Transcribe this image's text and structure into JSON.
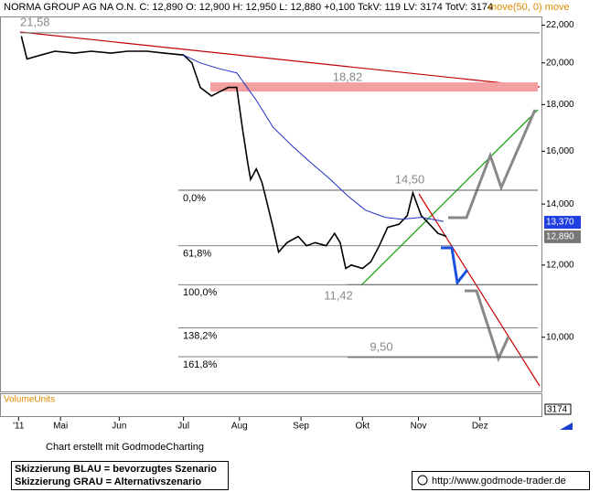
{
  "header": "NORMA GROUP AG NA    O.N. C: 12,890 O: 12,900 H: 12,950 L: 12,880 +0,100 TckV: 119 LV: 3174 TotV: 3174",
  "header_indicator": "move(50, 0) move",
  "footer": {
    "credit": "Chart erstellt mit GodmodeCharting",
    "legend_blue": "Skizzierung BLAU = bevorzugtes Szenario",
    "legend_gray": "Skizzierung GRAU = Alternativszenario",
    "url": "http://www.godmode-trader.de"
  },
  "chart_data": {
    "type": "line",
    "log_scale": true,
    "grid": false,
    "xlim": [
      0,
      192
    ],
    "ylim": [
      8.72,
      22.49
    ],
    "xticks": [
      {
        "value": 5,
        "label": "'11"
      },
      {
        "value": 20,
        "label": "Mai"
      },
      {
        "value": 41,
        "label": "Jun"
      },
      {
        "value": 64,
        "label": "Jul"
      },
      {
        "value": 84,
        "label": "Aug"
      },
      {
        "value": 106,
        "label": "Sep"
      },
      {
        "value": 128,
        "label": "Okt"
      },
      {
        "value": 148,
        "label": "Nov"
      },
      {
        "value": 170,
        "label": "Dez"
      }
    ],
    "yticks": [
      {
        "value": 10,
        "label": "10,000"
      },
      {
        "value": 12,
        "label": "12,000"
      },
      {
        "value": 14,
        "label": "14,000"
      },
      {
        "value": 16,
        "label": "16,000"
      },
      {
        "value": 18,
        "label": "18,000"
      },
      {
        "value": 20,
        "label": "20,000"
      },
      {
        "value": 22,
        "label": "22,000"
      }
    ],
    "series": [
      {
        "color": "#000000",
        "x": [
          6,
          8,
          13,
          18,
          25,
          31,
          38,
          44,
          51,
          57,
          64,
          67,
          70,
          74,
          77,
          80,
          83,
          85,
          87,
          88,
          90,
          92,
          93,
          96,
          98,
          101,
          105,
          108,
          111,
          115,
          118,
          120,
          122,
          124,
          128,
          131,
          134,
          137,
          141,
          144,
          146,
          149,
          152,
          155,
          158
        ],
        "values": [
          21.4,
          20.2,
          20.4,
          20.6,
          20.5,
          20.6,
          20.5,
          20.6,
          20.6,
          20.5,
          20.4,
          20.0,
          18.8,
          18.4,
          18.6,
          18.8,
          18.8,
          17.0,
          15.5,
          14.9,
          15.3,
          14.8,
          14.4,
          13.2,
          12.4,
          12.7,
          12.9,
          12.6,
          12.7,
          12.6,
          13.0,
          12.7,
          11.9,
          12.0,
          11.9,
          12.1,
          12.6,
          13.2,
          13.3,
          13.6,
          14.4,
          13.6,
          13.3,
          13.0,
          12.9
        ]
      },
      {
        "name": "move(50, 0)",
        "color": "#1f2fbf",
        "x": [
          64,
          70,
          77,
          83,
          90,
          96,
          103,
          110,
          116,
          123,
          129,
          136,
          142,
          149,
          157
        ],
        "values": [
          20.4,
          20.0,
          19.7,
          19.5,
          18.2,
          17.0,
          16.2,
          15.5,
          14.95,
          14.27,
          13.79,
          13.54,
          13.47,
          13.54,
          13.4
        ]
      }
    ],
    "levels": [
      {
        "value": 21.58,
        "label": "21,58"
      },
      {
        "value": 18.82,
        "label": "18,82"
      },
      {
        "value": 14.5,
        "label": "14,50"
      },
      {
        "value": 11.42,
        "label": "11,42"
      },
      {
        "value": 9.5,
        "label": "9,50"
      }
    ],
    "fib_levels": [
      {
        "value": 14.5,
        "label": "0,0%"
      },
      {
        "value": 12.6,
        "label": "61,8%"
      },
      {
        "value": 11.42,
        "label": "100,0%"
      },
      {
        "value": 10.24,
        "label": "138,2%"
      },
      {
        "value": 9.52,
        "label": "161,8%"
      }
    ],
    "price_labels": [
      {
        "value": 13.37,
        "label": "13,370",
        "color": "#1f3fdf"
      },
      {
        "value": 12.89,
        "label": "12,890",
        "color": "#777777"
      }
    ],
    "volume_label": "VolumeUnits",
    "volume_value": "3174"
  }
}
